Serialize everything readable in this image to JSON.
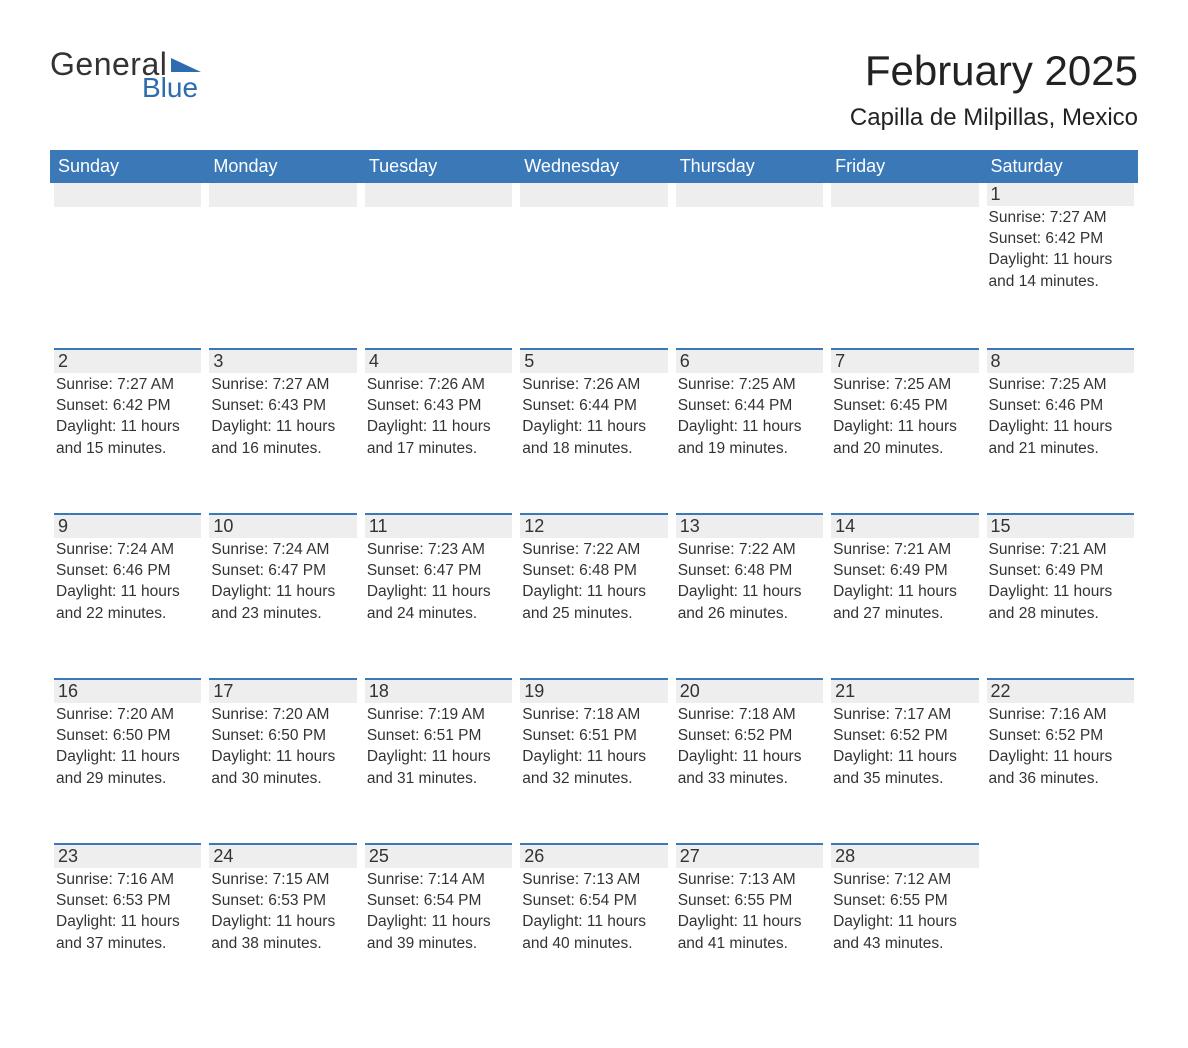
{
  "brand": {
    "word1": "General",
    "word2": "Blue",
    "tri_color": "#2e6cb0"
  },
  "title": "February 2025",
  "location": "Capilla de Milpillas, Mexico",
  "colors": {
    "header_bg": "#3b78b8",
    "header_text": "#ffffff",
    "daybar_bg": "#eeeeee",
    "daybar_border": "#3b78b8",
    "text": "#333333",
    "page_bg": "#ffffff"
  },
  "weekdays": [
    "Sunday",
    "Monday",
    "Tuesday",
    "Wednesday",
    "Thursday",
    "Friday",
    "Saturday"
  ],
  "weeks": [
    [
      null,
      null,
      null,
      null,
      null,
      null,
      {
        "n": "1",
        "sunrise": "Sunrise: 7:27 AM",
        "sunset": "Sunset: 6:42 PM",
        "day1": "Daylight: 11 hours",
        "day2": "and 14 minutes."
      }
    ],
    [
      {
        "n": "2",
        "sunrise": "Sunrise: 7:27 AM",
        "sunset": "Sunset: 6:42 PM",
        "day1": "Daylight: 11 hours",
        "day2": "and 15 minutes."
      },
      {
        "n": "3",
        "sunrise": "Sunrise: 7:27 AM",
        "sunset": "Sunset: 6:43 PM",
        "day1": "Daylight: 11 hours",
        "day2": "and 16 minutes."
      },
      {
        "n": "4",
        "sunrise": "Sunrise: 7:26 AM",
        "sunset": "Sunset: 6:43 PM",
        "day1": "Daylight: 11 hours",
        "day2": "and 17 minutes."
      },
      {
        "n": "5",
        "sunrise": "Sunrise: 7:26 AM",
        "sunset": "Sunset: 6:44 PM",
        "day1": "Daylight: 11 hours",
        "day2": "and 18 minutes."
      },
      {
        "n": "6",
        "sunrise": "Sunrise: 7:25 AM",
        "sunset": "Sunset: 6:44 PM",
        "day1": "Daylight: 11 hours",
        "day2": "and 19 minutes."
      },
      {
        "n": "7",
        "sunrise": "Sunrise: 7:25 AM",
        "sunset": "Sunset: 6:45 PM",
        "day1": "Daylight: 11 hours",
        "day2": "and 20 minutes."
      },
      {
        "n": "8",
        "sunrise": "Sunrise: 7:25 AM",
        "sunset": "Sunset: 6:46 PM",
        "day1": "Daylight: 11 hours",
        "day2": "and 21 minutes."
      }
    ],
    [
      {
        "n": "9",
        "sunrise": "Sunrise: 7:24 AM",
        "sunset": "Sunset: 6:46 PM",
        "day1": "Daylight: 11 hours",
        "day2": "and 22 minutes."
      },
      {
        "n": "10",
        "sunrise": "Sunrise: 7:24 AM",
        "sunset": "Sunset: 6:47 PM",
        "day1": "Daylight: 11 hours",
        "day2": "and 23 minutes."
      },
      {
        "n": "11",
        "sunrise": "Sunrise: 7:23 AM",
        "sunset": "Sunset: 6:47 PM",
        "day1": "Daylight: 11 hours",
        "day2": "and 24 minutes."
      },
      {
        "n": "12",
        "sunrise": "Sunrise: 7:22 AM",
        "sunset": "Sunset: 6:48 PM",
        "day1": "Daylight: 11 hours",
        "day2": "and 25 minutes."
      },
      {
        "n": "13",
        "sunrise": "Sunrise: 7:22 AM",
        "sunset": "Sunset: 6:48 PM",
        "day1": "Daylight: 11 hours",
        "day2": "and 26 minutes."
      },
      {
        "n": "14",
        "sunrise": "Sunrise: 7:21 AM",
        "sunset": "Sunset: 6:49 PM",
        "day1": "Daylight: 11 hours",
        "day2": "and 27 minutes."
      },
      {
        "n": "15",
        "sunrise": "Sunrise: 7:21 AM",
        "sunset": "Sunset: 6:49 PM",
        "day1": "Daylight: 11 hours",
        "day2": "and 28 minutes."
      }
    ],
    [
      {
        "n": "16",
        "sunrise": "Sunrise: 7:20 AM",
        "sunset": "Sunset: 6:50 PM",
        "day1": "Daylight: 11 hours",
        "day2": "and 29 minutes."
      },
      {
        "n": "17",
        "sunrise": "Sunrise: 7:20 AM",
        "sunset": "Sunset: 6:50 PM",
        "day1": "Daylight: 11 hours",
        "day2": "and 30 minutes."
      },
      {
        "n": "18",
        "sunrise": "Sunrise: 7:19 AM",
        "sunset": "Sunset: 6:51 PM",
        "day1": "Daylight: 11 hours",
        "day2": "and 31 minutes."
      },
      {
        "n": "19",
        "sunrise": "Sunrise: 7:18 AM",
        "sunset": "Sunset: 6:51 PM",
        "day1": "Daylight: 11 hours",
        "day2": "and 32 minutes."
      },
      {
        "n": "20",
        "sunrise": "Sunrise: 7:18 AM",
        "sunset": "Sunset: 6:52 PM",
        "day1": "Daylight: 11 hours",
        "day2": "and 33 minutes."
      },
      {
        "n": "21",
        "sunrise": "Sunrise: 7:17 AM",
        "sunset": "Sunset: 6:52 PM",
        "day1": "Daylight: 11 hours",
        "day2": "and 35 minutes."
      },
      {
        "n": "22",
        "sunrise": "Sunrise: 7:16 AM",
        "sunset": "Sunset: 6:52 PM",
        "day1": "Daylight: 11 hours",
        "day2": "and 36 minutes."
      }
    ],
    [
      {
        "n": "23",
        "sunrise": "Sunrise: 7:16 AM",
        "sunset": "Sunset: 6:53 PM",
        "day1": "Daylight: 11 hours",
        "day2": "and 37 minutes."
      },
      {
        "n": "24",
        "sunrise": "Sunrise: 7:15 AM",
        "sunset": "Sunset: 6:53 PM",
        "day1": "Daylight: 11 hours",
        "day2": "and 38 minutes."
      },
      {
        "n": "25",
        "sunrise": "Sunrise: 7:14 AM",
        "sunset": "Sunset: 6:54 PM",
        "day1": "Daylight: 11 hours",
        "day2": "and 39 minutes."
      },
      {
        "n": "26",
        "sunrise": "Sunrise: 7:13 AM",
        "sunset": "Sunset: 6:54 PM",
        "day1": "Daylight: 11 hours",
        "day2": "and 40 minutes."
      },
      {
        "n": "27",
        "sunrise": "Sunrise: 7:13 AM",
        "sunset": "Sunset: 6:55 PM",
        "day1": "Daylight: 11 hours",
        "day2": "and 41 minutes."
      },
      {
        "n": "28",
        "sunrise": "Sunrise: 7:12 AM",
        "sunset": "Sunset: 6:55 PM",
        "day1": "Daylight: 11 hours",
        "day2": "and 43 minutes."
      },
      null
    ]
  ]
}
